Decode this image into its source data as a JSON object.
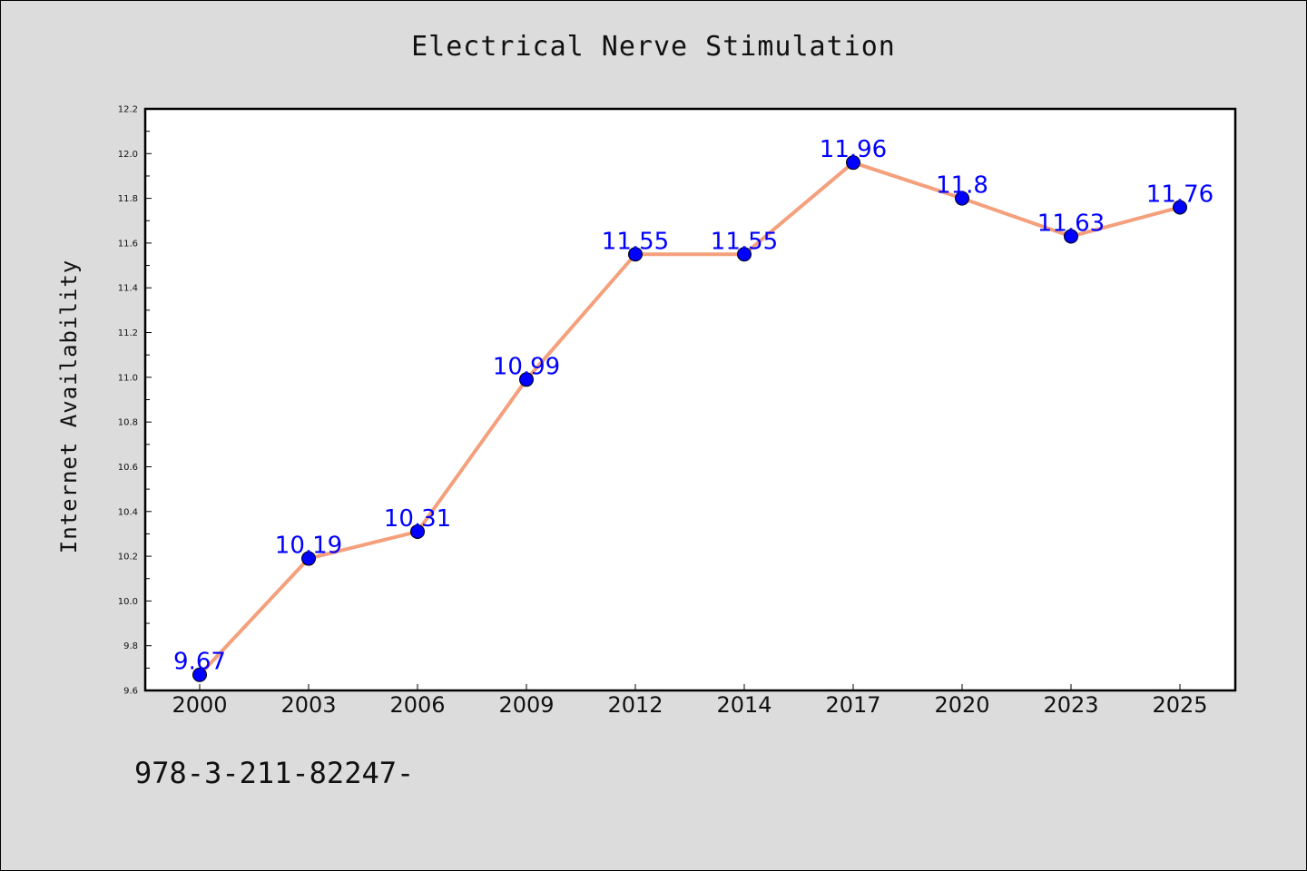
{
  "chart_data": {
    "type": "line",
    "title": "Electrical Nerve Stimulation",
    "xlabel": "",
    "ylabel": "Internet Availability",
    "categories": [
      "2000",
      "2003",
      "2006",
      "2009",
      "2012",
      "2014",
      "2017",
      "2020",
      "2023",
      "2025"
    ],
    "series": [
      {
        "values": [
          9.67,
          10.19,
          10.31,
          10.99,
          11.55,
          11.55,
          11.96,
          11.8,
          11.63,
          11.76
        ]
      }
    ],
    "data_labels": [
      "9.67",
      "10.19",
      "10.31",
      "10.99",
      "11.55",
      "11.55",
      "11.96",
      "11.8",
      "11.63",
      "11.76"
    ],
    "ylim": [
      9.6,
      12.2
    ],
    "yticks": [
      "9.6",
      "9.8",
      "10.0",
      "10.2",
      "10.4",
      "10.6",
      "10.8",
      "11.0",
      "11.2",
      "11.4",
      "11.6",
      "11.8",
      "12.0",
      "12.2"
    ],
    "grid": false,
    "line_color": "#f4a07c",
    "marker_color": "#0000ff",
    "label_color": "#0000ff",
    "background_color": "#dcdcdc",
    "plot_background": "#ffffff"
  },
  "footer_text": "978-3-211-82247-"
}
